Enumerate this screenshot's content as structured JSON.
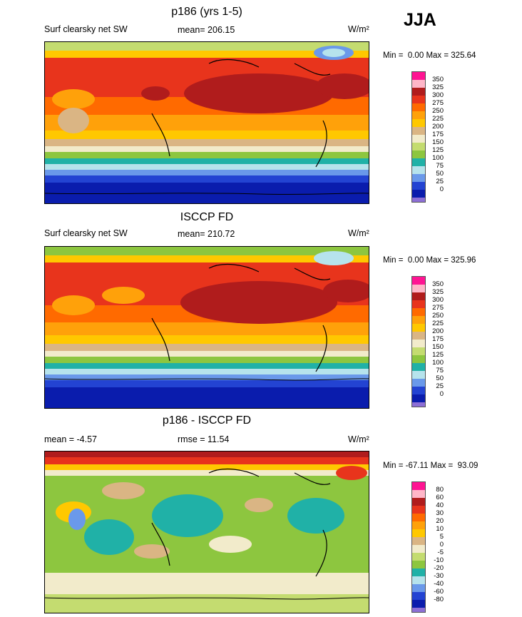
{
  "season": "JJA",
  "palette_abs": [
    "#8d6fd6",
    "#0a1cad",
    "#2343d2",
    "#6a99ea",
    "#b6e3ec",
    "#20b1a7",
    "#8dc63f",
    "#c4dc70",
    "#f2ebcb",
    "#dab584",
    "#ffc800",
    "#ffa10a",
    "#ff6a00",
    "#e8341c",
    "#b01c1c",
    "#ffb6c8",
    "#ff1493"
  ],
  "palette_diff": [
    "#8d6fd6",
    "#0a1cad",
    "#2343d2",
    "#6a99ea",
    "#b6e3ec",
    "#20b1a7",
    "#8dc63f",
    "#c4dc70",
    "#f2ebcb",
    "#dab584",
    "#ffc800",
    "#ffa10a",
    "#ff6a00",
    "#e8341c",
    "#b01c1c",
    "#ffb6c8",
    "#ff1493"
  ],
  "panels": [
    {
      "title": "p186 (yrs 1-5)",
      "left_label": "Surf clearsky net SW",
      "center_label": "mean= 206.15",
      "units": "W/m²",
      "min_label": "Min =",
      "min_value": "0.00",
      "max_label": "Max =",
      "max_value": "325.64",
      "ticks": [
        "350",
        "325",
        "300",
        "275",
        "250",
        "225",
        "200",
        "175",
        "150",
        "125",
        "100",
        "75",
        "50",
        "25",
        "0"
      ]
    },
    {
      "title": "ISCCP FD",
      "left_label": "Surf clearsky net SW",
      "center_label": "mean= 210.72",
      "units": "W/m²",
      "min_label": "Min =",
      "min_value": "0.00",
      "max_label": "Max =",
      "max_value": "325.96",
      "ticks": [
        "350",
        "325",
        "300",
        "275",
        "250",
        "225",
        "200",
        "175",
        "150",
        "125",
        "100",
        "75",
        "50",
        "25",
        "0"
      ]
    },
    {
      "title": "p186 - ISCCP FD",
      "left_label": "mean =  -4.57",
      "center_label": "rmse =  11.54",
      "units": "W/m²",
      "min_label": "Min =",
      "min_value": "-67.11",
      "max_label": "Max =",
      "max_value": "93.09",
      "ticks": [
        "80",
        "60",
        "40",
        "30",
        "20",
        "10",
        "5",
        "0",
        "-5",
        "-10",
        "-20",
        "-30",
        "-40",
        "-60",
        "-80"
      ]
    }
  ],
  "chart_data": [
    {
      "type": "heatmap",
      "title": "p186 (yrs 1-5)",
      "variable": "Surf clearsky net SW",
      "units": "W/m²",
      "mean": 206.15,
      "min": 0.0,
      "max": 325.64,
      "contour_levels": [
        0,
        25,
        50,
        75,
        100,
        125,
        150,
        175,
        200,
        225,
        250,
        275,
        300,
        325,
        350
      ]
    },
    {
      "type": "heatmap",
      "title": "ISCCP FD",
      "variable": "Surf clearsky net SW",
      "units": "W/m²",
      "mean": 210.72,
      "min": 0.0,
      "max": 325.96,
      "contour_levels": [
        0,
        25,
        50,
        75,
        100,
        125,
        150,
        175,
        200,
        225,
        250,
        275,
        300,
        325,
        350
      ]
    },
    {
      "type": "heatmap",
      "title": "p186 - ISCCP FD",
      "units": "W/m²",
      "mean": -4.57,
      "rmse": 11.54,
      "min": -67.11,
      "max": 93.09,
      "contour_levels": [
        -80,
        -60,
        -40,
        -30,
        -20,
        -10,
        -5,
        0,
        5,
        10,
        20,
        30,
        40,
        60,
        80
      ]
    }
  ]
}
